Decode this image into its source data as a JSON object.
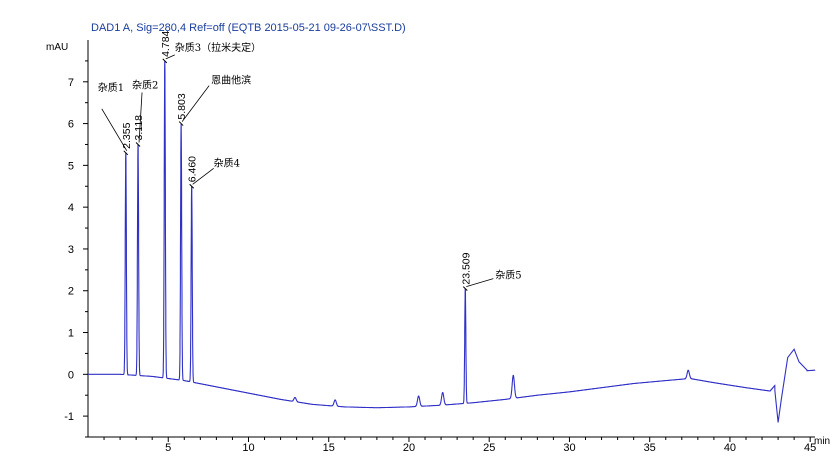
{
  "chart_data": {
    "type": "line",
    "title": "DAD1 A, Sig=280,4 Ref=off (EQTB 2015-05-21 09-26-07\\SST.D)",
    "ylabel": "mAU",
    "xlabel": "min",
    "xlim": [
      0,
      45.3
    ],
    "ylim": [
      -1.5,
      8.0
    ],
    "x_ticks": [
      5,
      10,
      15,
      20,
      25,
      30,
      35,
      40,
      45
    ],
    "y_ticks": [
      -1,
      0,
      1,
      2,
      3,
      4,
      5,
      6,
      7
    ],
    "peaks": [
      {
        "rt": 2.355,
        "height": 5.3,
        "rt_label": "2.355",
        "label": "杂质1"
      },
      {
        "rt": 3.118,
        "height": 5.5,
        "rt_label": "3.118",
        "label": "杂质2"
      },
      {
        "rt": 4.784,
        "height": 7.5,
        "rt_label": "4.784",
        "label": "杂质3（拉米夫定）"
      },
      {
        "rt": 5.803,
        "height": 6.0,
        "rt_label": "5.803",
        "label": "恩曲他滨"
      },
      {
        "rt": 6.46,
        "height": 4.5,
        "rt_label": "6.460",
        "label": "杂质4"
      },
      {
        "rt": 23.509,
        "height": 2.05,
        "rt_label": "23.509",
        "label": "杂质5"
      }
    ],
    "baseline": [
      [
        0,
        0.0
      ],
      [
        1,
        0.0
      ],
      [
        2,
        0.0
      ],
      [
        4,
        -0.05
      ],
      [
        6,
        -0.15
      ],
      [
        8,
        -0.3
      ],
      [
        10,
        -0.45
      ],
      [
        12,
        -0.6
      ],
      [
        14,
        -0.72
      ],
      [
        16,
        -0.78
      ],
      [
        18,
        -0.8
      ],
      [
        20,
        -0.78
      ],
      [
        22,
        -0.74
      ],
      [
        24,
        -0.68
      ],
      [
        26,
        -0.6
      ],
      [
        28,
        -0.5
      ],
      [
        30,
        -0.42
      ],
      [
        32,
        -0.32
      ],
      [
        34,
        -0.22
      ],
      [
        36,
        -0.15
      ],
      [
        37.5,
        -0.1
      ],
      [
        39,
        -0.2
      ],
      [
        41,
        -0.32
      ],
      [
        42.5,
        -0.4
      ],
      [
        43.5,
        0.05
      ],
      [
        45.3,
        0.1
      ]
    ],
    "minor_peaks": [
      {
        "rt": 12.9,
        "height": 0.1
      },
      {
        "rt": 15.4,
        "height": 0.15
      },
      {
        "rt": 20.6,
        "height": 0.25
      },
      {
        "rt": 22.1,
        "height": 0.3
      },
      {
        "rt": 26.5,
        "height": 0.55
      },
      {
        "rt": 37.4,
        "height": 0.2
      }
    ],
    "disturbance": [
      [
        42.8,
        -0.4
      ],
      [
        43.0,
        -1.15
      ],
      [
        43.2,
        -0.6
      ],
      [
        43.6,
        0.4
      ],
      [
        44.0,
        0.6
      ],
      [
        44.3,
        0.3
      ],
      [
        44.8,
        0.1
      ]
    ],
    "grid": false,
    "colors": {
      "signal": "#3030c8",
      "header": "#1a3d9e"
    }
  }
}
